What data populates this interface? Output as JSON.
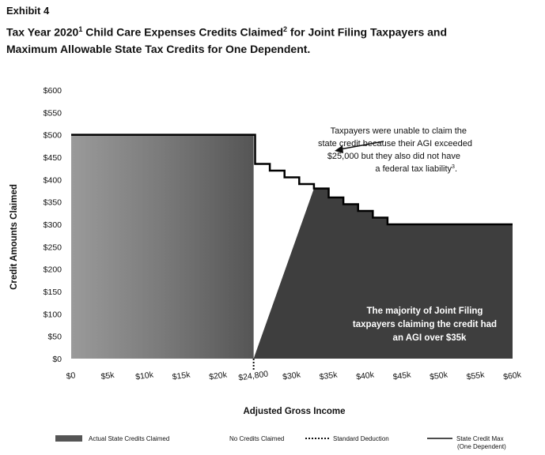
{
  "header": {
    "exhibit": "Exhibit 4",
    "title_part1": "Tax Year 2020",
    "title_sup1": "1",
    "title_part2": " Child Care Expenses Credits Claimed",
    "title_sup2": "2",
    "title_part3": " for Joint Filing Taxpayers and",
    "title_line2": "Maximum Allowable State Tax Credits for One Dependent."
  },
  "chart_data": {
    "type": "area",
    "ylabel": "Credit Amounts Claimed",
    "xlabel": "Adjusted Gross Income",
    "xlim": [
      0,
      60000
    ],
    "ylim": [
      0,
      600
    ],
    "y_ticks": [
      0,
      50,
      100,
      150,
      200,
      250,
      300,
      350,
      400,
      450,
      500,
      550,
      600
    ],
    "y_tick_labels": [
      "$0",
      "$50",
      "$100",
      "$150",
      "$200",
      "$250",
      "$300",
      "$350",
      "$400",
      "$450",
      "$500",
      "$550",
      "$600"
    ],
    "x_ticks": [
      0,
      5000,
      10000,
      15000,
      20000,
      24800,
      30000,
      35000,
      40000,
      45000,
      50000,
      55000,
      60000
    ],
    "x_tick_labels": [
      "$0",
      "$5k",
      "$10k",
      "$15k",
      "$20k",
      "$24,800",
      "$30k",
      "$35k",
      "$40k",
      "$45k",
      "$50k",
      "$55k",
      "$60k"
    ],
    "standard_deduction_x": 24800,
    "series": [
      {
        "name": "Actual State Credits Claimed",
        "color": "#3e3e3e",
        "points": [
          [
            0,
            500
          ],
          [
            24800,
            500
          ],
          [
            24800,
            0
          ],
          [
            33000,
            380
          ],
          [
            35000,
            380
          ],
          [
            35000,
            360
          ],
          [
            37000,
            360
          ],
          [
            37000,
            345
          ],
          [
            39000,
            345
          ],
          [
            39000,
            330
          ],
          [
            41000,
            330
          ],
          [
            41000,
            315
          ],
          [
            43000,
            315
          ],
          [
            43000,
            300
          ],
          [
            60000,
            300
          ]
        ]
      },
      {
        "name": "State Credit Max (One Dependent)",
        "color": "#000000",
        "points": [
          [
            0,
            500
          ],
          [
            25000,
            500
          ],
          [
            25000,
            435
          ],
          [
            27000,
            435
          ],
          [
            27000,
            420
          ],
          [
            29000,
            420
          ],
          [
            29000,
            405
          ],
          [
            31000,
            405
          ],
          [
            31000,
            390
          ],
          [
            33000,
            390
          ],
          [
            33000,
            380
          ],
          [
            35000,
            380
          ],
          [
            35000,
            360
          ],
          [
            37000,
            360
          ],
          [
            37000,
            345
          ],
          [
            39000,
            345
          ],
          [
            39000,
            330
          ],
          [
            41000,
            330
          ],
          [
            41000,
            315
          ],
          [
            43000,
            315
          ],
          [
            43000,
            300
          ],
          [
            60000,
            300
          ]
        ]
      }
    ],
    "annotations": {
      "top_lines": [
        "Taxpayers were unable to claim the",
        "state credit because their AGI exceeded",
        "$25,000 but they also did not have",
        "a federal tax liability",
        "3",
        "."
      ],
      "bottom_lines": [
        "The majority of Joint Filing",
        "taxpayers claiming the credit had",
        "an AGI over $35k"
      ]
    },
    "legend": [
      {
        "label": "Actual State Credits Claimed",
        "kind": "area"
      },
      {
        "label": "No Credits Claimed",
        "kind": "white"
      },
      {
        "label": "Standard Deduction",
        "kind": "dotted"
      },
      {
        "label": "State Credit Max",
        "label2": "(One Dependent)",
        "kind": "line"
      }
    ]
  }
}
